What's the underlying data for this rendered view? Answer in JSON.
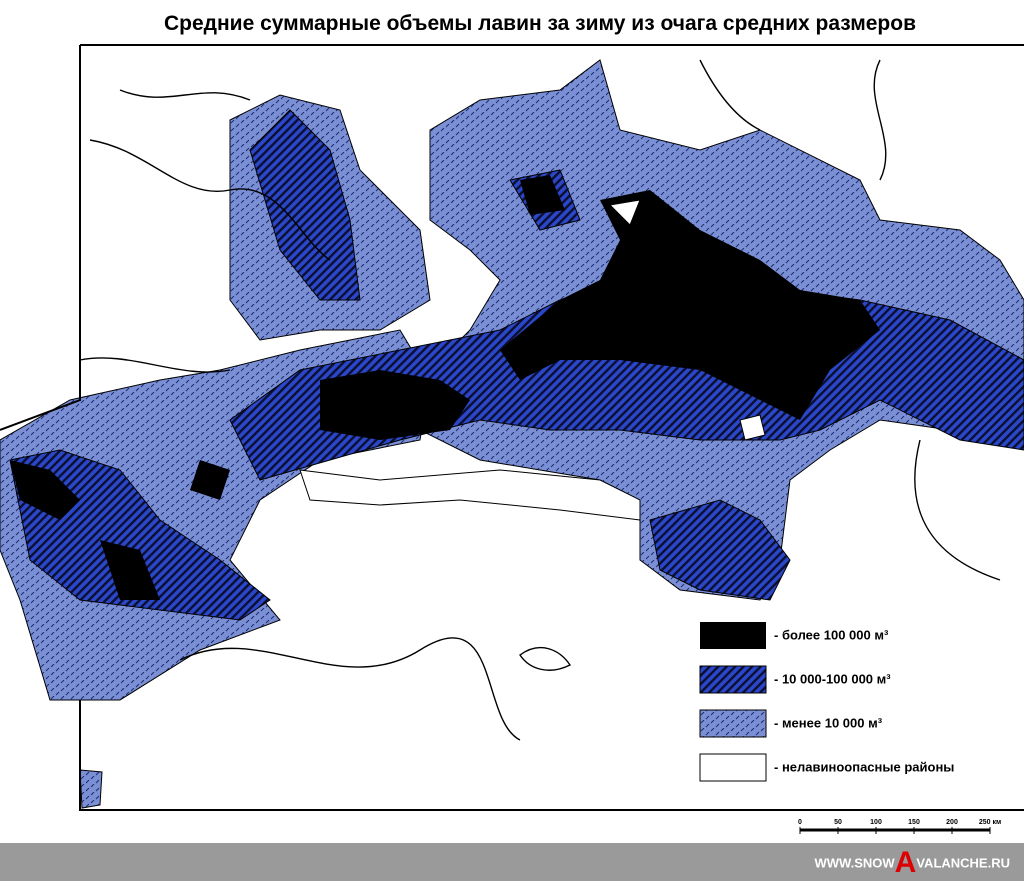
{
  "header": {
    "title": "Средние суммарные объемы лавин за зиму из очага средних размеров"
  },
  "legend": {
    "items": [
      {
        "label": "- более 100 000 м³"
      },
      {
        "label": "- 10 000-100 000 м³"
      },
      {
        "label": "- менее 10 000 м³"
      },
      {
        "label": "- нелавиноопасные районы"
      }
    ]
  },
  "scale_bar": {
    "labels": [
      "0",
      "50",
      "100",
      "150",
      "200",
      "250 км"
    ]
  },
  "footer": {
    "prefix": "WWW.SNOW",
    "letter": "A",
    "suffix": "VALANCHE.RU"
  }
}
